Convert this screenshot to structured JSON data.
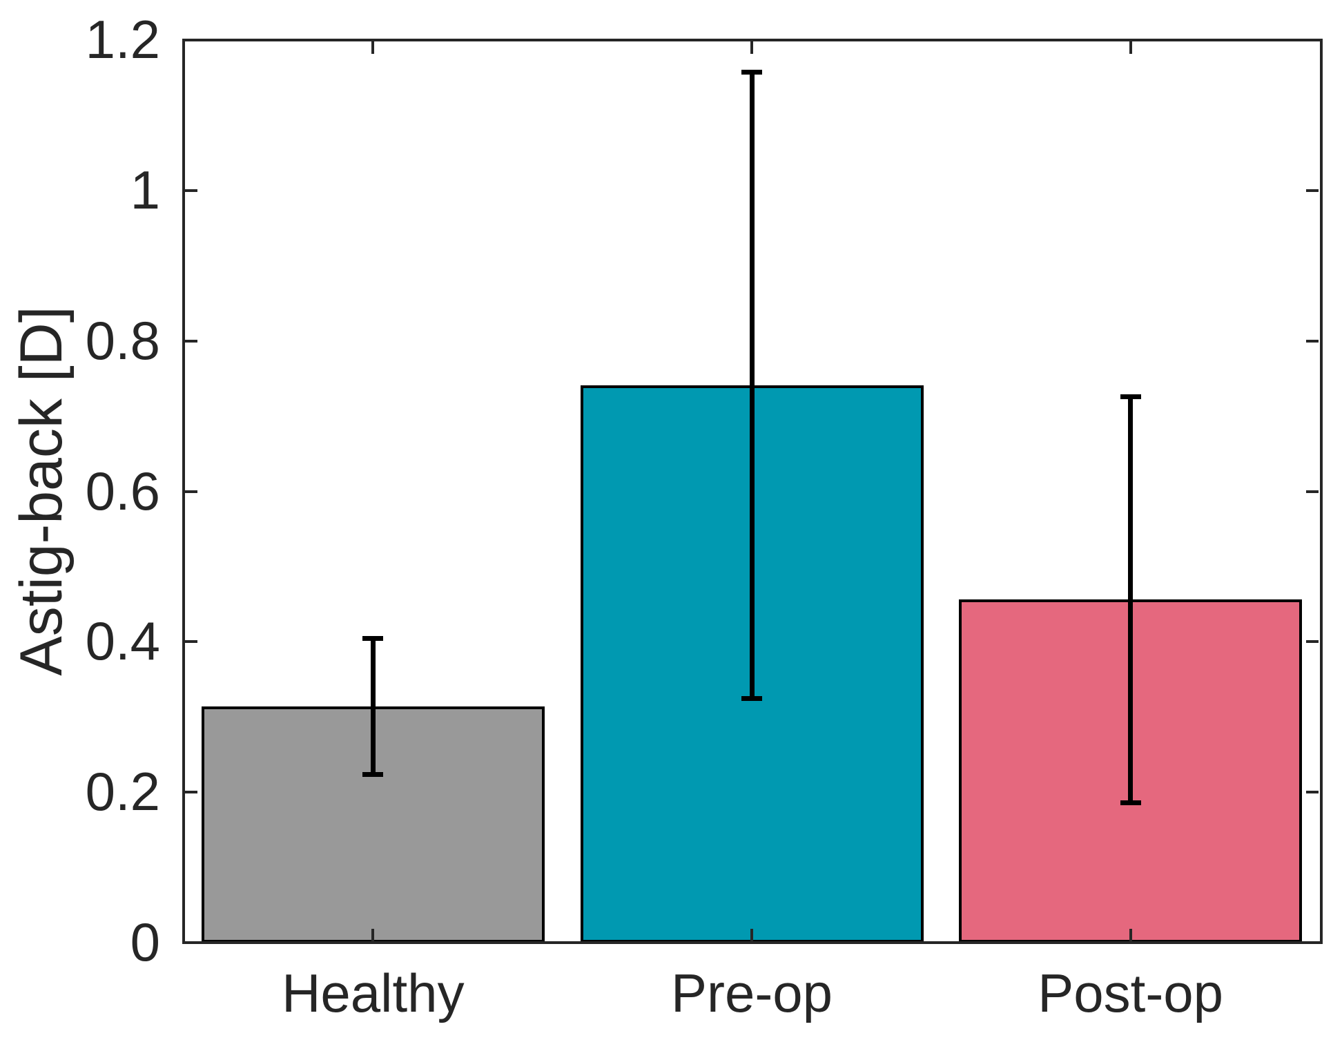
{
  "figure": {
    "background": "#FFFFFF"
  },
  "chart_data": {
    "type": "bar",
    "title": "",
    "xlabel": "",
    "ylabel": "Astig-back [D]",
    "categories": [
      "Healthy",
      "Pre-op",
      "Post-op"
    ],
    "values": [
      0.314,
      0.741,
      0.456
    ],
    "error_bars": [
      0.09,
      0.416,
      0.27
    ],
    "bar_colors": [
      "#999999",
      "#0099B1",
      "#E5687E"
    ],
    "bar_edge_color": "#000000",
    "error_bar_color": "#000000",
    "axis_color": "#262626",
    "ylim": [
      0,
      1.2
    ],
    "yticks": [
      0,
      0.2,
      0.4,
      0.6,
      0.8,
      1,
      1.2
    ],
    "ytick_labels": [
      "0",
      "0.2",
      "0.4",
      "0.6",
      "0.8",
      "1",
      "1.2"
    ],
    "grid": false,
    "legend": null,
    "tick_direction": "in",
    "box": true
  }
}
